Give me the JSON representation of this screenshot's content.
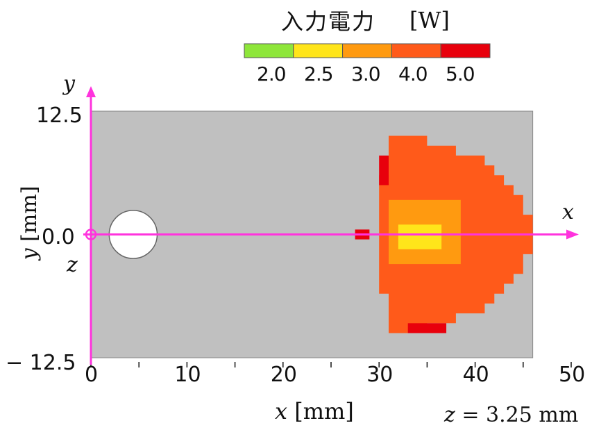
{
  "colorbar": {
    "title": "入力電力",
    "unit": "[W]",
    "ticks": [
      "2.0",
      "2.5",
      "3.0",
      "4.0",
      "5.0"
    ],
    "colors": [
      "#8ee63a",
      "#ffe51a",
      "#ff9a10",
      "#ff5a1a",
      "#e8000c"
    ]
  },
  "axes": {
    "x_axis_label": "x",
    "y_axis_label": "y",
    "z_label": "z",
    "xlabel_var": "x",
    "xlabel_unit": "[mm]",
    "ylabel_var": "y",
    "ylabel_unit": "[mm]",
    "x_ticks": [
      "0",
      "10",
      "20",
      "30",
      "40",
      "50"
    ],
    "y_ticks": [
      "12.5",
      "0.0",
      "− 12.5"
    ],
    "xlim": [
      0,
      50
    ],
    "ylim": [
      -12.5,
      12.5
    ],
    "axis_color": "#ff33dd"
  },
  "annotation": {
    "z_var": "z",
    "z_value": "= 3.25 mm"
  },
  "colors": {
    "plate": "#c0c0c0",
    "hole": "#ffffff"
  },
  "chart_data": {
    "type": "heatmap",
    "value_levels_W": [
      2.0,
      2.5,
      3.0,
      4.0,
      5.0
    ],
    "xlim_mm": [
      0,
      50
    ],
    "ylim_mm": [
      -12.5,
      12.5
    ],
    "plate_extent_mm": {
      "x": [
        0,
        46
      ],
      "y": [
        -12.5,
        12.5
      ]
    },
    "hole": {
      "center_mm": [
        4.4,
        0.0
      ],
      "radius_mm": 2.5
    },
    "cell_size_mm": 1.0,
    "regions_mm": [
      {
        "level_W": 4.0,
        "x": [
          30.0,
          46.0
        ],
        "y": [
          -10.0,
          10.0
        ],
        "shape": "half-disk"
      },
      {
        "level_W": 5.0,
        "x": [
          30.0,
          31.0
        ],
        "y": [
          5.0,
          8.0
        ]
      },
      {
        "level_W": 5.0,
        "x": [
          33.0,
          37.0
        ],
        "y": [
          -10.0,
          -9.0
        ]
      },
      {
        "level_W": 5.0,
        "x": [
          27.5,
          29.0
        ],
        "y": [
          -0.5,
          0.5
        ]
      },
      {
        "level_W": 3.0,
        "x": [
          31.0,
          38.5
        ],
        "y": [
          -3.0,
          3.5
        ]
      },
      {
        "level_W": 2.5,
        "x": [
          32.0,
          36.5
        ],
        "y": [
          -1.5,
          1.0
        ]
      }
    ]
  }
}
